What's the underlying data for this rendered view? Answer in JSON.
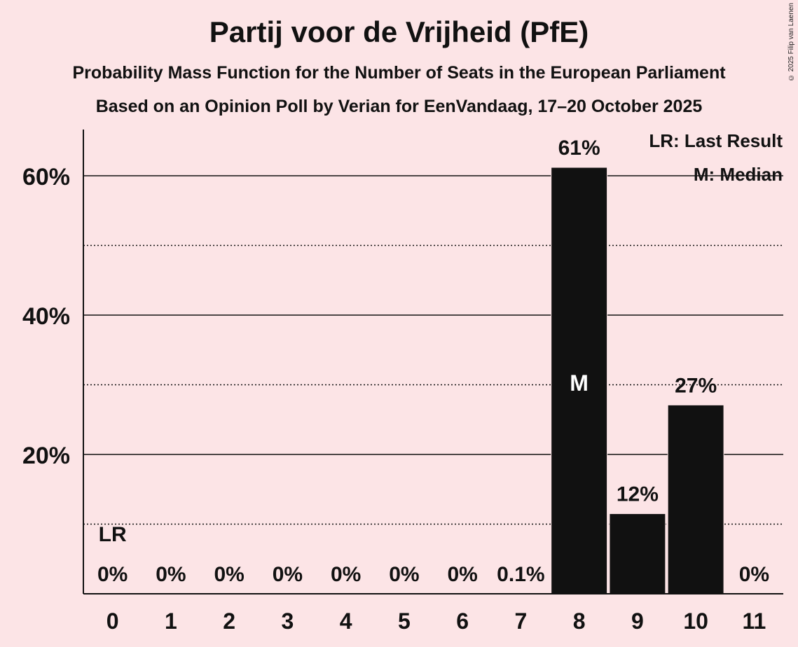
{
  "title": "Partij voor de Vrijheid (PfE)",
  "subtitle1": "Probability Mass Function for the Number of Seats in the European Parliament",
  "subtitle2": "Based on an Opinion Poll by Verian for EenVandaag, 17–20 October 2025",
  "copyright": "© 2025 Filip van Laenen",
  "legend": {
    "last_result": "LR: Last Result",
    "median": "M: Median"
  },
  "colors": {
    "background": "#fce4e6",
    "bar": "#111111",
    "text": "#111111"
  },
  "chart_data": {
    "type": "bar",
    "categories": [
      "0",
      "1",
      "2",
      "3",
      "4",
      "5",
      "6",
      "7",
      "8",
      "9",
      "10",
      "11"
    ],
    "values": [
      0,
      0,
      0,
      0,
      0,
      0,
      0,
      0.1,
      61.2,
      11.5,
      27.1,
      0
    ],
    "labels": [
      "0%",
      "0%",
      "0%",
      "0%",
      "0%",
      "0%",
      "0%",
      "0.1%",
      "61%",
      "12%",
      "27%",
      "0%"
    ],
    "ylim": [
      0,
      67
    ],
    "yticks_major": [
      20,
      40,
      60
    ],
    "ytick_labels": [
      "20%",
      "40%",
      "60%"
    ],
    "yticks_minor": [
      10,
      30,
      50
    ],
    "last_result_seat": "0",
    "last_result_marker": "LR",
    "median_seat": "8",
    "median_marker": "M"
  }
}
